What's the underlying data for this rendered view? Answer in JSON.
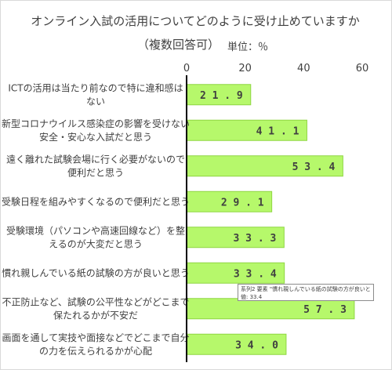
{
  "title": "オンライン入試の活用についてどのように受け止めていますか",
  "subtitle": "（複数回答可）",
  "unit": "単位：％",
  "colors": {
    "bar_fill": "#b6f86b",
    "bar_stroke": "#8fd643",
    "axis": "#000000",
    "text": "#404040"
  },
  "tooltip": {
    "line1": "系列2 要素 \"慣れ親しんでいる紙の試験の方が良いと思う\"",
    "line2": "値: 33.4"
  },
  "chart_data": {
    "type": "bar",
    "orientation": "horizontal",
    "xlim": [
      0,
      60
    ],
    "ticks": [
      0,
      20,
      40,
      60
    ],
    "tick_labels": [
      "0",
      "20",
      "40",
      "60"
    ],
    "grid": false,
    "categories": [
      [
        "ICTの活用は当たり前なので特に違和感は",
        "ない"
      ],
      [
        "新型コロナウイルス感染症の影響を受けない",
        "安全・安心な入試だと思う"
      ],
      [
        "遠く離れた試験会場に行く必要がないので",
        "便利だと思う"
      ],
      [
        "受験日程を組みやすくなるので便利だと思う"
      ],
      [
        "受験環境（パソコンや高速回線など）を整",
        "えるのが大変だと思う"
      ],
      [
        "慣れ親しんでいる紙の試験の方が良いと思う"
      ],
      [
        "不正防止など、試験の公平性などがどこまで",
        "保たれるかが不安だ"
      ],
      [
        "画面を通して実技や面接などでどこまで自分",
        "の力を伝えられるかが心配"
      ]
    ],
    "values": [
      21.9,
      41.1,
      53.4,
      29.1,
      33.3,
      33.4,
      57.3,
      34.0
    ],
    "value_labels": [
      "21.9",
      "41.1",
      "53.4",
      "29.1",
      "33.3",
      "33.4",
      "57.3",
      "34.0"
    ]
  }
}
